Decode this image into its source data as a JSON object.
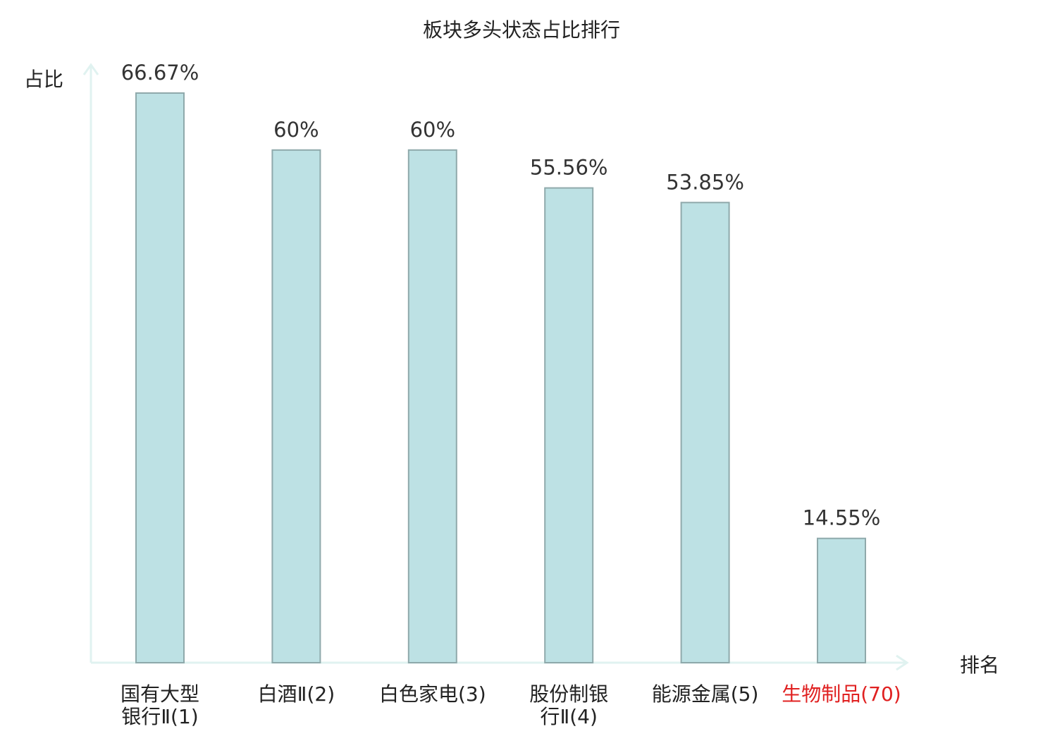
{
  "chart_data": {
    "type": "bar",
    "title": "板块多头状态占比排行",
    "ylabel": "占比",
    "xlabel": "排名",
    "ylim": [
      0,
      70
    ],
    "grid": false,
    "categories": [
      [
        "国有大型",
        "银行Ⅱ(1)"
      ],
      [
        "白酒Ⅱ(2)"
      ],
      [
        "白色家电(3)"
      ],
      [
        "股份制银",
        "行Ⅱ(4)"
      ],
      [
        "能源金属(5)"
      ],
      [
        "生物制品(70)"
      ]
    ],
    "values": [
      66.67,
      60,
      60,
      55.56,
      53.85,
      14.55
    ],
    "value_labels": [
      "66.67%",
      "60%",
      "60%",
      "55.56%",
      "53.85%",
      "14.55%"
    ],
    "highlight_index": 5
  },
  "colors": {
    "bar_fill": "#bde1e4",
    "bar_stroke": "#8fa9ab",
    "axis": "#e0f2f0",
    "text": "#333333",
    "category_text": "#222222",
    "highlight": "#e02020"
  }
}
